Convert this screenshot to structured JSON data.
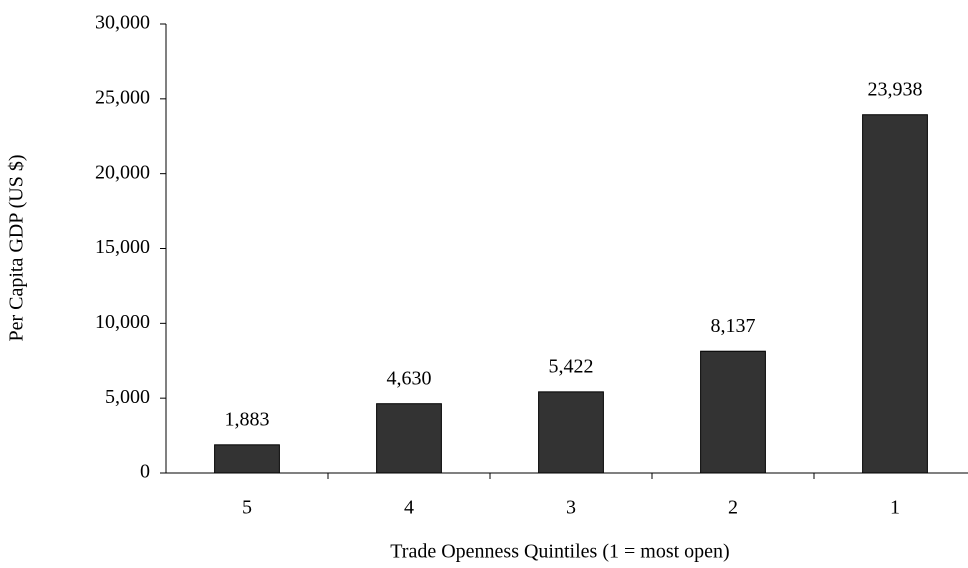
{
  "chart_data": {
    "type": "bar",
    "x_label": "Trade Openness Quintiles (1 = most open)",
    "y_label": "Per Capita GDP (US $)",
    "categories": [
      "5",
      "4",
      "3",
      "2",
      "1"
    ],
    "values": [
      1883,
      4630,
      5422,
      8137,
      23938
    ],
    "value_labels": [
      "1,883",
      "4,630",
      "5,422",
      "8,137",
      "23,938"
    ],
    "color": "#333333",
    "ylim": [
      0,
      30000
    ],
    "yticks": [
      0,
      {
        "value": 5000,
        "label": "5,000"
      },
      {
        "value": 10000,
        "label": "10,000"
      },
      {
        "value": 15000,
        "label": "15,000"
      },
      {
        "value": 20000,
        "label": "20,000"
      },
      {
        "value": 25000,
        "label": "25,000"
      },
      {
        "value": 30000,
        "label": "30,000"
      }
    ],
    "grid": false
  }
}
